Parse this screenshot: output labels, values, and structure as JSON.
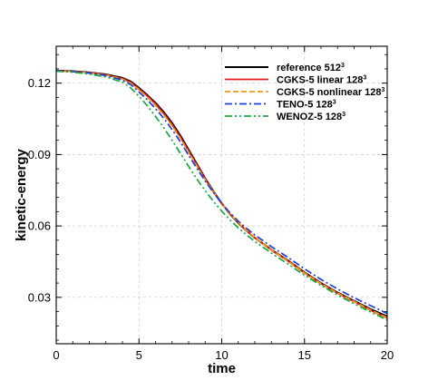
{
  "chart_data": {
    "type": "line",
    "xlabel": "time",
    "ylabel": "kinetic-energy",
    "xlim": [
      0,
      20
    ],
    "ylim": [
      0.0105,
      0.1355
    ],
    "xticks": [
      0,
      5,
      10,
      15,
      20
    ],
    "xtick_labels": [
      "0",
      "5",
      "10",
      "15",
      "20"
    ],
    "yticks": [
      0.03,
      0.06,
      0.09,
      0.12
    ],
    "ytick_labels": [
      "0.03",
      "0.06",
      "0.09",
      "0.12"
    ],
    "grid": true,
    "legend_position": "top-right",
    "series": [
      {
        "name": "reference 512",
        "name_sup": "3",
        "color": "#000000",
        "dash": "solid",
        "x": [
          0,
          1,
          2,
          3,
          4,
          4.5,
          5,
          5.5,
          6,
          6.5,
          7,
          7.5,
          8,
          8.5,
          9,
          9.5,
          10,
          10.5,
          11,
          11.5,
          12,
          13,
          14,
          15,
          16,
          17,
          18,
          19,
          20
        ],
        "y": [
          0.1253,
          0.125,
          0.1245,
          0.1237,
          0.1222,
          0.1207,
          0.118,
          0.115,
          0.1117,
          0.1078,
          0.1033,
          0.098,
          0.092,
          0.086,
          0.08,
          0.0745,
          0.0695,
          0.065,
          0.0612,
          0.058,
          0.055,
          0.05,
          0.0455,
          0.0405,
          0.036,
          0.032,
          0.0285,
          0.025,
          0.022
        ]
      },
      {
        "name": "CGKS-5 linear 128",
        "name_sup": "3",
        "color": "#e41a1c",
        "dash": "solid",
        "x": [
          0,
          1,
          2,
          3,
          4,
          4.5,
          5,
          5.5,
          6,
          6.5,
          7,
          7.5,
          8,
          8.5,
          9,
          9.5,
          10,
          10.5,
          11,
          11.5,
          12,
          13,
          14,
          15,
          16,
          17,
          18,
          19,
          20
        ],
        "y": [
          0.1252,
          0.1249,
          0.1244,
          0.1235,
          0.1219,
          0.1203,
          0.1176,
          0.1146,
          0.1112,
          0.1072,
          0.1026,
          0.0973,
          0.0914,
          0.0855,
          0.0797,
          0.0743,
          0.0694,
          0.0651,
          0.0613,
          0.058,
          0.055,
          0.0498,
          0.0452,
          0.0402,
          0.0357,
          0.0317,
          0.0282,
          0.0245,
          0.0213
        ]
      },
      {
        "name": "CGKS-5 nonlinear 128",
        "name_sup": "3",
        "color": "#f39c12",
        "dash": "dashed",
        "x": [
          0,
          1,
          2,
          3,
          4,
          4.5,
          5,
          5.5,
          6,
          6.5,
          7,
          7.5,
          8,
          8.5,
          9,
          9.5,
          10,
          10.5,
          11,
          11.5,
          12,
          13,
          14,
          15,
          16,
          17,
          18,
          19,
          20
        ],
        "y": [
          0.1252,
          0.1249,
          0.1243,
          0.1234,
          0.1217,
          0.12,
          0.1172,
          0.1141,
          0.1106,
          0.1066,
          0.102,
          0.0968,
          0.091,
          0.0852,
          0.0795,
          0.0742,
          0.0694,
          0.0651,
          0.0614,
          0.0581,
          0.0551,
          0.0499,
          0.0453,
          0.0403,
          0.0358,
          0.0318,
          0.0283,
          0.0247,
          0.0215
        ]
      },
      {
        "name": "TENO-5 128",
        "name_sup": "3",
        "color": "#1f3fd6",
        "dash": "dashdot",
        "x": [
          0,
          1,
          2,
          3,
          4,
          4.5,
          5,
          5.5,
          6,
          6.5,
          7,
          7.5,
          8,
          8.5,
          9,
          9.5,
          10,
          10.5,
          11,
          11.5,
          12,
          13,
          14,
          15,
          16,
          17,
          18,
          19,
          20
        ],
        "y": [
          0.1252,
          0.1248,
          0.1242,
          0.1232,
          0.1213,
          0.1194,
          0.1163,
          0.113,
          0.1093,
          0.1052,
          0.1005,
          0.0953,
          0.0897,
          0.0842,
          0.0789,
          0.074,
          0.0695,
          0.0655,
          0.062,
          0.059,
          0.0562,
          0.0513,
          0.0468,
          0.042,
          0.0375,
          0.0335,
          0.0298,
          0.0265,
          0.0232
        ]
      },
      {
        "name": "WENOZ-5 128",
        "name_sup": "3",
        "color": "#1aa843",
        "dash": "dashdotdot",
        "x": [
          0,
          1,
          2,
          3,
          4,
          4.5,
          5,
          5.5,
          6,
          6.5,
          7,
          7.5,
          8,
          8.5,
          9,
          9.5,
          10,
          10.5,
          11,
          11.5,
          12,
          13,
          14,
          15,
          16,
          17,
          18,
          19,
          20
        ],
        "y": [
          0.125,
          0.1246,
          0.1238,
          0.1226,
          0.1204,
          0.118,
          0.1145,
          0.1105,
          0.106,
          0.1012,
          0.096,
          0.0905,
          0.085,
          0.0797,
          0.0748,
          0.0703,
          0.0662,
          0.0625,
          0.0592,
          0.0562,
          0.0535,
          0.0486,
          0.044,
          0.0393,
          0.035,
          0.031,
          0.0273,
          0.0238,
          0.0205
        ]
      }
    ]
  }
}
